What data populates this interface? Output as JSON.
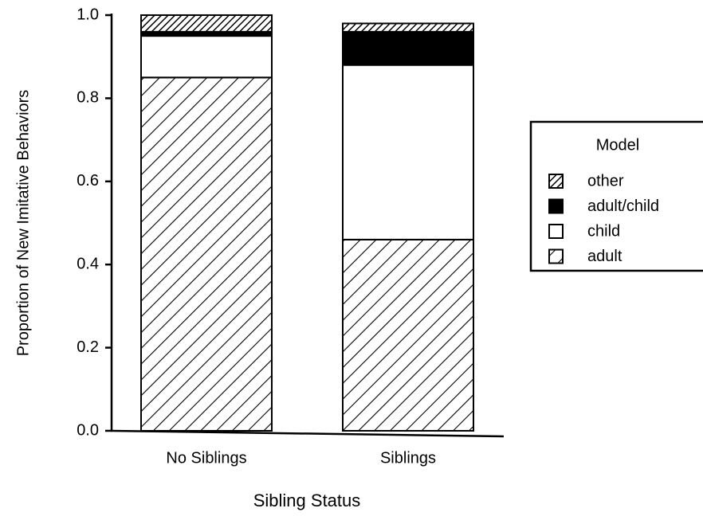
{
  "chart_data": {
    "type": "stacked_bar",
    "xlabel": "Sibling Status",
    "ylabel": "Proportion of New Imitative Behaviors",
    "categories": [
      "No Siblings",
      "Siblings"
    ],
    "series": [
      {
        "name": "adult",
        "color": "#000000",
        "pattern": "sparse-hatch",
        "values": [
          0.85,
          0.46
        ]
      },
      {
        "name": "child",
        "color": "#ffffff",
        "pattern": "solid",
        "values": [
          0.1,
          0.42
        ]
      },
      {
        "name": "adult/child",
        "color": "#000000",
        "pattern": "solid",
        "values": [
          0.01,
          0.08
        ]
      },
      {
        "name": "other",
        "color": "#000000",
        "pattern": "dense-hatch",
        "values": [
          0.04,
          0.02
        ]
      }
    ],
    "legend_title": "Model",
    "legend": "right",
    "ylim": [
      0,
      1
    ],
    "yticks": [
      {
        "value": 0,
        "label": "0.0"
      },
      0.2,
      0.4,
      0.6,
      0.8,
      {
        "value": 1,
        "label": "1.0"
      }
    ]
  }
}
